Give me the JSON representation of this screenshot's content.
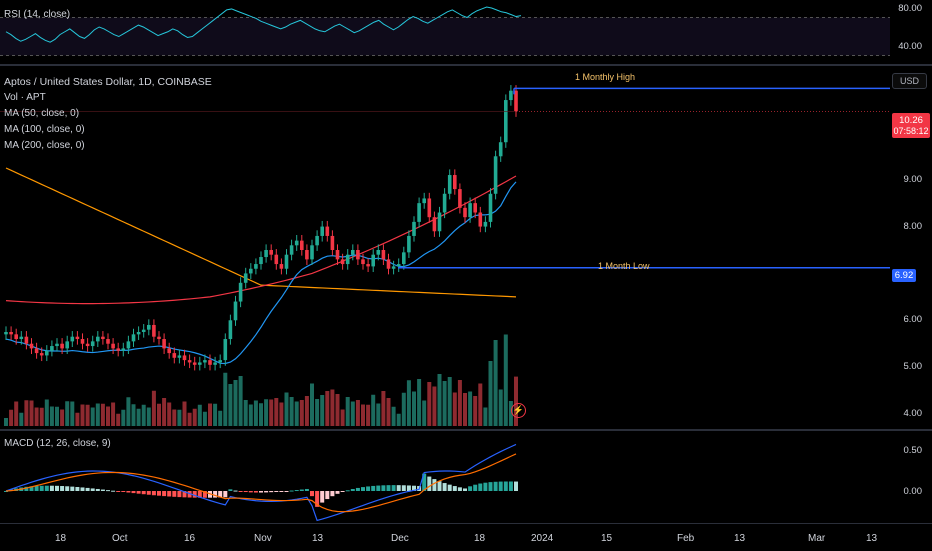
{
  "rsi": {
    "label": "RSI (14, close)",
    "ticks": [
      "80.00",
      "40.00"
    ],
    "values": [
      55,
      52,
      48,
      45,
      47,
      50,
      53,
      49,
      46,
      44,
      47,
      52,
      55,
      58,
      54,
      50,
      48,
      52,
      57,
      60,
      58,
      55,
      52,
      50,
      53,
      56,
      59,
      62,
      60,
      57,
      54,
      51,
      53,
      55,
      58,
      56,
      52,
      49,
      50,
      54,
      58,
      62,
      66,
      70,
      74,
      78,
      79,
      77,
      75,
      73,
      71,
      69,
      66,
      64,
      62,
      60,
      58,
      60,
      63,
      65,
      67,
      64,
      61,
      58,
      56,
      55,
      58,
      61,
      63,
      60,
      57,
      54,
      56,
      59,
      62,
      65,
      67,
      63,
      60,
      57,
      60,
      64,
      68,
      71,
      69,
      66,
      64,
      67,
      70,
      73,
      76,
      78,
      75,
      72,
      70,
      74,
      77,
      79,
      81,
      80,
      78,
      76,
      75,
      73,
      71,
      72
    ]
  },
  "price": {
    "title": "Aptos / United States Dollar, 1D, COINBASE",
    "vol_label": "Vol · APT",
    "ma50": "MA (50, close, 0)",
    "ma100": "MA (100, close, 0)",
    "ma200": "MA (200, close, 0)",
    "currency": "USD",
    "last_price": "10.26",
    "countdown": "07:58:12",
    "low_value": "6.92",
    "monthly_high_label": "1 Monthly High",
    "month_low_label": "1 Month Low",
    "ticks": [
      "9.00",
      "8.00",
      "7.00",
      "6.00",
      "5.00",
      "4.00"
    ],
    "ma_colors": {
      "ma50": "#2196f3",
      "ma100": "#f23645",
      "ma200": "#ff9800"
    },
    "up_color": "#22ab94",
    "down_color": "#f23645"
  },
  "macd": {
    "label": "MACD (12, 26, close, 9)",
    "ticks": [
      "0.50",
      "0.00"
    ]
  },
  "xaxis": {
    "labels": [
      "18",
      "Oct",
      "16",
      "Nov",
      "13",
      "Dec",
      "18",
      "2024",
      "15",
      "Feb",
      "13",
      "Mar",
      "13"
    ]
  },
  "chart_data": {
    "type": "candlestick",
    "title": "Aptos / United States Dollar, 1D, COINBASE",
    "ylim": [
      3.8,
      10.8
    ],
    "closes": [
      5.55,
      5.5,
      5.4,
      5.45,
      5.3,
      5.2,
      5.1,
      5.05,
      5.15,
      5.25,
      5.3,
      5.2,
      5.35,
      5.45,
      5.4,
      5.3,
      5.25,
      5.35,
      5.45,
      5.4,
      5.3,
      5.2,
      5.15,
      5.2,
      5.35,
      5.5,
      5.55,
      5.6,
      5.7,
      5.45,
      5.4,
      5.2,
      5.1,
      5.0,
      5.05,
      4.95,
      4.9,
      4.85,
      4.9,
      4.95,
      4.85,
      4.9,
      4.95,
      5.4,
      5.8,
      6.2,
      6.6,
      6.8,
      6.9,
      7.0,
      7.15,
      7.3,
      7.2,
      7.0,
      6.9,
      7.2,
      7.4,
      7.5,
      7.3,
      7.1,
      7.4,
      7.6,
      7.8,
      7.6,
      7.3,
      7.1,
      7.0,
      7.2,
      7.3,
      7.1,
      7.0,
      6.95,
      7.2,
      7.3,
      7.1,
      6.9,
      6.95,
      7.0,
      7.25,
      7.6,
      7.9,
      8.3,
      8.4,
      8.0,
      7.7,
      8.1,
      8.5,
      8.9,
      8.6,
      8.2,
      8.0,
      8.3,
      8.1,
      7.8,
      7.9,
      8.5,
      9.3,
      9.6,
      10.5,
      10.7,
      10.26
    ],
    "levels": {
      "1 Monthly High": 10.75,
      "1 Month Low": 6.92
    },
    "last": 10.26
  }
}
